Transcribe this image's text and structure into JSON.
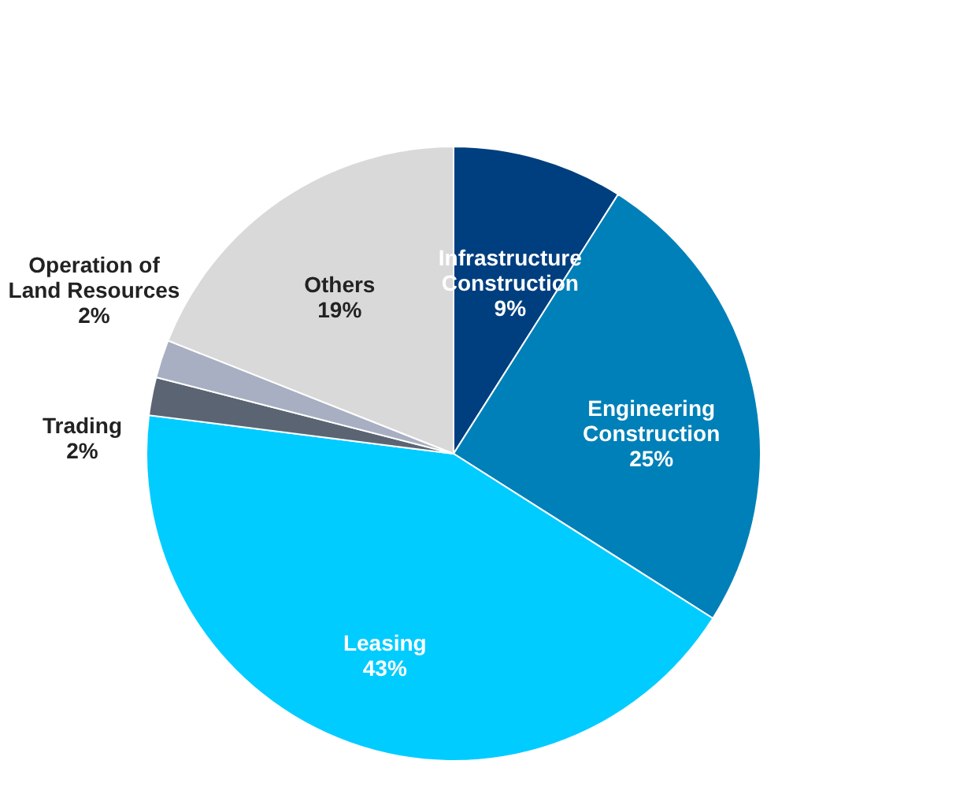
{
  "chart_data": {
    "type": "pie",
    "categories": [
      "Infrastructure Construction",
      "Engineering Construction",
      "Leasing",
      "Trading",
      "Operation of Land Resources",
      "Others"
    ],
    "values": [
      9,
      25,
      43,
      2,
      2,
      19
    ],
    "value_labels": [
      "9%",
      "25%",
      "43%",
      "2%",
      "2%",
      "19%"
    ],
    "colors": [
      "#003f7f",
      "#0080b8",
      "#00ccff",
      "#5b6472",
      "#a9afc2",
      "#d9d9d9"
    ],
    "legend": false
  }
}
